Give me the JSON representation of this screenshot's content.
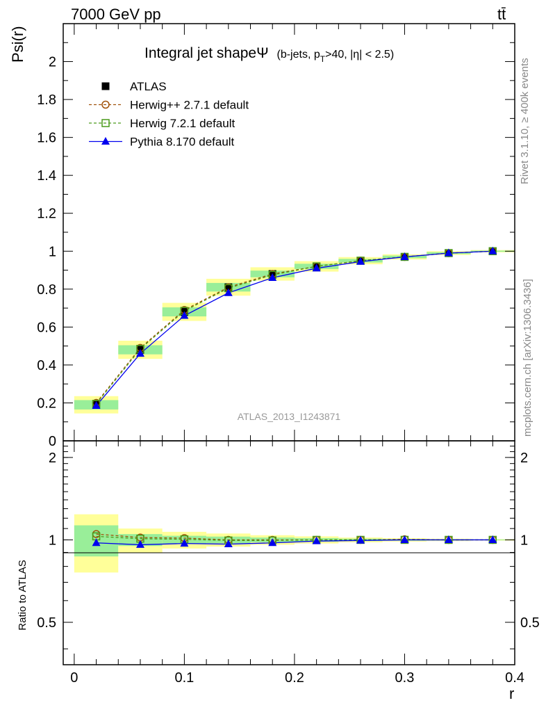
{
  "header": {
    "energy": "7000 GeV pp",
    "process": "tt̄"
  },
  "side": {
    "rivet": "Rivet 3.1.10, ≥ 400k events",
    "mcplots": "mcplots.cern.ch [arXiv:1306.3436]"
  },
  "chart_data": {
    "type": "line",
    "title": "Integral jet shape",
    "title_symbol": "Ψ",
    "subtitle_a": "(b-jets, p",
    "subtitle_sub": "T",
    "subtitle_b": ">40, |η| < 2.5)",
    "analysis_id": "ATLAS_2013_I1243871",
    "xlabel": "r",
    "ylabel": "Psi(r)",
    "ratio_ylabel": "Ratio to ATLAS",
    "xlim": [
      -0.01,
      0.4
    ],
    "ylim": [
      0,
      2.2
    ],
    "ratio_ylim": [
      0.35,
      2.3
    ],
    "x": [
      0.02,
      0.06,
      0.1,
      0.14,
      0.18,
      0.22,
      0.26,
      0.3,
      0.34,
      0.38
    ],
    "bin_edges": [
      0.0,
      0.04,
      0.08,
      0.12,
      0.16,
      0.2,
      0.24,
      0.28,
      0.32,
      0.36,
      0.4
    ],
    "x_ticks": [
      "0",
      "0.1",
      "0.2",
      "0.3",
      "0.4"
    ],
    "y_ticks": [
      "0",
      "0.2",
      "0.4",
      "0.6",
      "0.8",
      "1",
      "1.2",
      "1.4",
      "1.6",
      "1.8",
      "2"
    ],
    "ratio_ticks": [
      "0.5",
      "1",
      "2"
    ],
    "series": [
      {
        "name": "ATLAS",
        "color": "#000000",
        "marker": "square-filled",
        "values": [
          0.19,
          0.48,
          0.68,
          0.81,
          0.88,
          0.92,
          0.95,
          0.97,
          0.99,
          1.0
        ]
      },
      {
        "name": "Herwig++ 2.7.1 default",
        "color": "#a0520a",
        "marker": "circle-open",
        "values": [
          0.2,
          0.49,
          0.69,
          0.81,
          0.88,
          0.92,
          0.95,
          0.97,
          0.99,
          1.0
        ],
        "ratio": [
          1.05,
          1.02,
          1.015,
          1.0,
          1.0,
          1.0,
          1.0,
          1.005,
          1.0,
          1.0
        ]
      },
      {
        "name": "Herwig 7.2.1 default",
        "color": "#4a9a1a",
        "marker": "square-open",
        "values": [
          0.195,
          0.485,
          0.685,
          0.805,
          0.875,
          0.92,
          0.95,
          0.97,
          0.99,
          1.0
        ],
        "ratio": [
          1.03,
          1.01,
          1.005,
          0.995,
          0.995,
          1.0,
          1.0,
          1.0,
          1.0,
          1.0
        ]
      },
      {
        "name": "Pythia 8.170 default",
        "color": "#0000ee",
        "marker": "triangle-filled",
        "values": [
          0.185,
          0.46,
          0.66,
          0.78,
          0.86,
          0.91,
          0.945,
          0.97,
          0.99,
          1.0
        ],
        "ratio": [
          0.975,
          0.96,
          0.97,
          0.965,
          0.975,
          0.99,
          0.995,
          1.0,
          1.0,
          1.0
        ]
      }
    ],
    "data_band_green": [
      0.13,
      0.05,
      0.035,
      0.028,
      0.02,
      0.015,
      0.01,
      0.007,
      0.005,
      0.003
    ],
    "data_band_yellow": [
      0.24,
      0.1,
      0.07,
      0.055,
      0.04,
      0.03,
      0.02,
      0.014,
      0.01,
      0.006
    ],
    "legend_position": "top-left"
  }
}
